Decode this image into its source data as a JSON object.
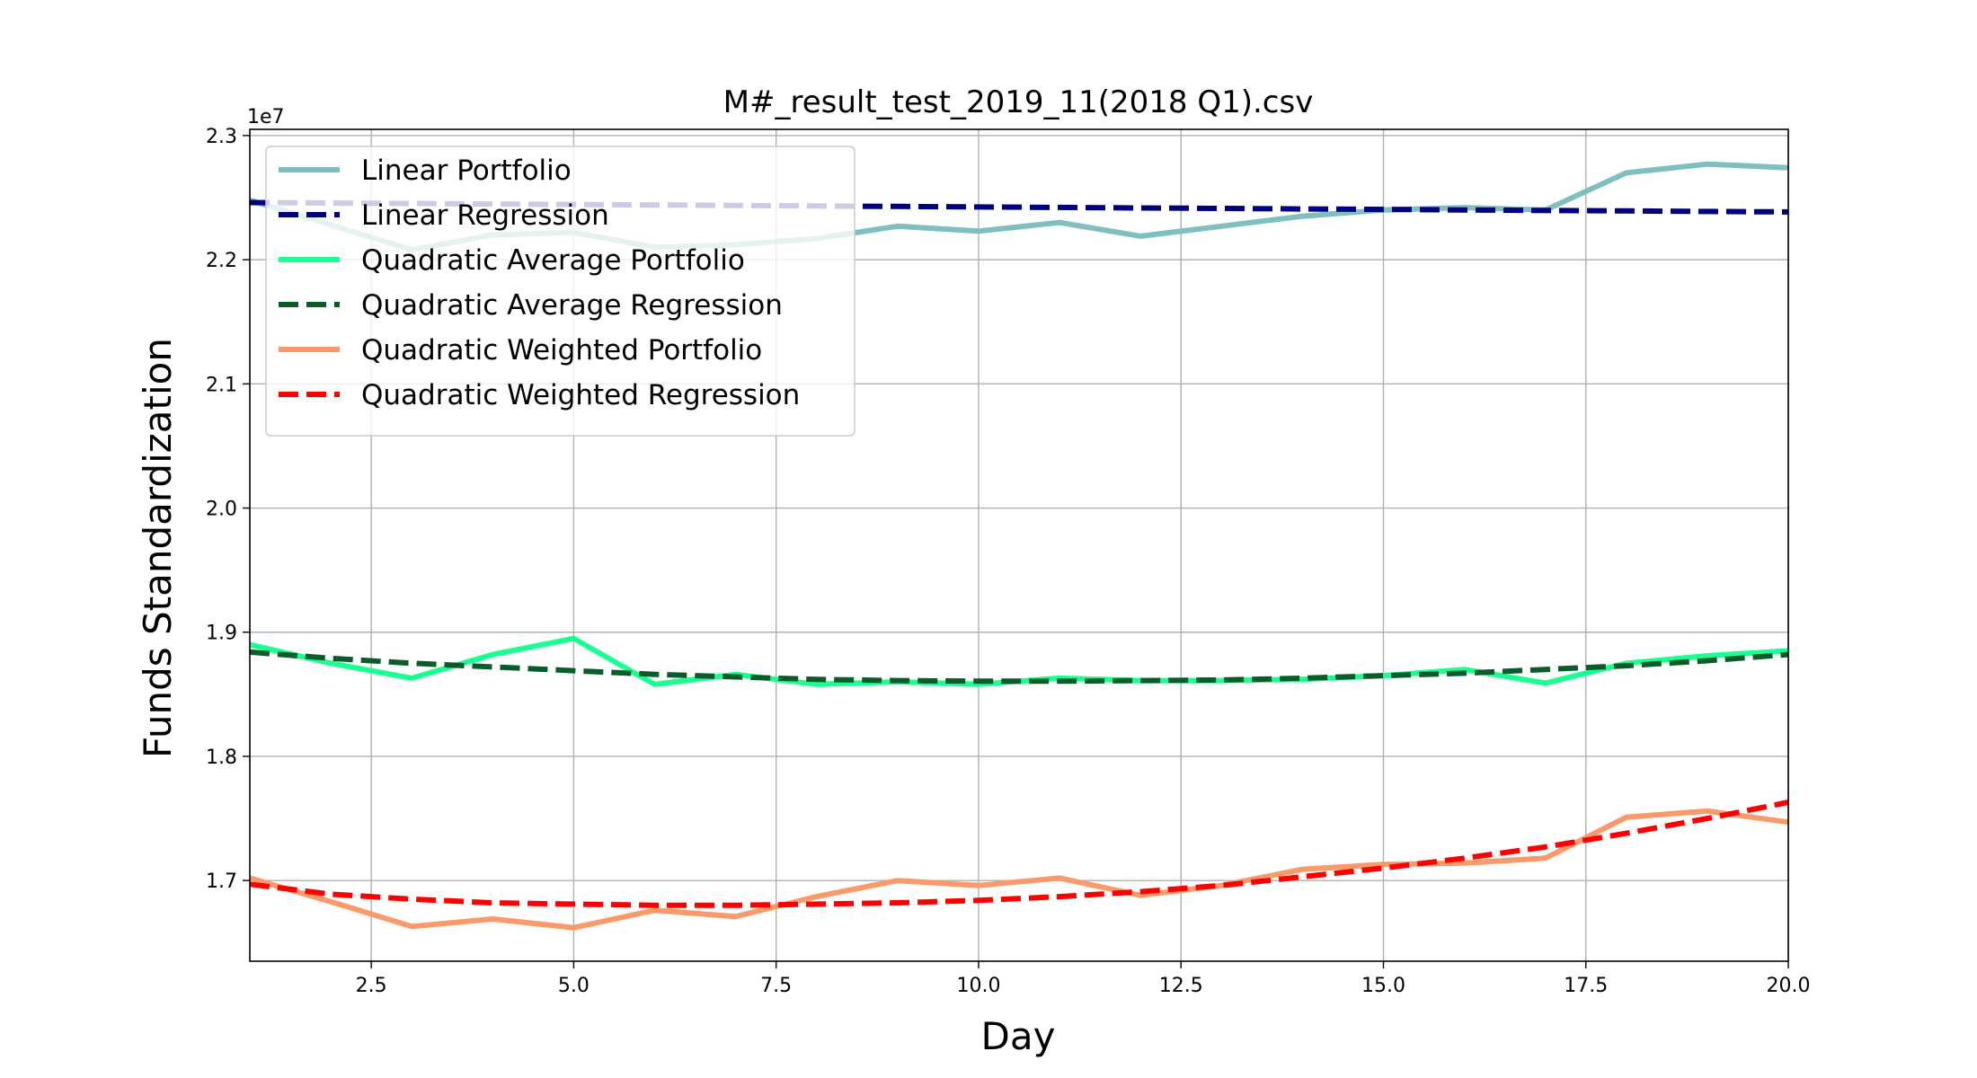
{
  "chart_data": {
    "type": "line",
    "title": "M#_result_test_2019_11(2018 Q1).csv",
    "xlabel": "Day",
    "ylabel": "Funds Standardization",
    "y_offset_label": "1e7",
    "xlim": [
      1,
      20
    ],
    "ylim": [
      16.35,
      23.05
    ],
    "xticks": [
      2.5,
      5.0,
      7.5,
      10.0,
      12.5,
      15.0,
      17.5,
      20.0
    ],
    "xtick_labels": [
      "2.5",
      "5.0",
      "7.5",
      "10.0",
      "12.5",
      "15.0",
      "17.5",
      "20.0"
    ],
    "yticks": [
      17,
      18,
      19,
      20,
      21,
      22,
      23
    ],
    "ytick_labels": [
      "1.7",
      "1.8",
      "1.9",
      "2.0",
      "2.1",
      "2.2",
      "2.3"
    ],
    "grid": true,
    "legend_position": "top-left",
    "x": [
      1,
      2,
      3,
      4,
      5,
      6,
      7,
      8,
      9,
      10,
      11,
      12,
      13,
      14,
      15,
      16,
      17,
      18,
      19,
      20
    ],
    "series": [
      {
        "name": "Linear Portfolio",
        "color": "#7fbfbf",
        "style": "solid",
        "values": [
          22.48,
          22.28,
          22.08,
          22.2,
          22.22,
          22.1,
          22.12,
          22.17,
          22.27,
          22.23,
          22.3,
          22.19,
          22.27,
          22.35,
          22.4,
          22.42,
          22.4,
          22.7,
          22.77,
          22.74
        ]
      },
      {
        "name": "Linear Regression",
        "color": "#000080",
        "style": "dashed",
        "values": [
          22.46,
          22.457,
          22.453,
          22.449,
          22.445,
          22.441,
          22.437,
          22.433,
          22.429,
          22.425,
          22.421,
          22.417,
          22.413,
          22.409,
          22.405,
          22.401,
          22.397,
          22.393,
          22.389,
          22.385
        ]
      },
      {
        "name": "Quadratic Average Portfolio",
        "color": "#1aff92",
        "style": "solid",
        "values": [
          18.9,
          18.75,
          18.63,
          18.82,
          18.95,
          18.58,
          18.66,
          18.58,
          18.6,
          18.58,
          18.63,
          18.61,
          18.61,
          18.62,
          18.65,
          18.7,
          18.59,
          18.75,
          18.81,
          18.85
        ]
      },
      {
        "name": "Quadratic Average Regression",
        "color": "#0a5c2b",
        "style": "dashed",
        "values": [
          18.84,
          18.79,
          18.75,
          18.72,
          18.69,
          18.66,
          18.64,
          18.62,
          18.61,
          18.605,
          18.605,
          18.61,
          18.615,
          18.63,
          18.65,
          18.67,
          18.7,
          18.73,
          18.77,
          18.82
        ]
      },
      {
        "name": "Quadratic Weighted Portfolio",
        "color": "#fa9a6a",
        "style": "solid",
        "values": [
          17.02,
          16.83,
          16.63,
          16.69,
          16.62,
          16.76,
          16.71,
          16.87,
          17.0,
          16.96,
          17.02,
          16.88,
          16.96,
          17.09,
          17.13,
          17.14,
          17.18,
          17.51,
          17.56,
          17.47
        ]
      },
      {
        "name": "Quadratic Weighted Regression",
        "color": "#ff0000",
        "style": "dashed",
        "values": [
          16.97,
          16.89,
          16.85,
          16.82,
          16.81,
          16.8,
          16.8,
          16.81,
          16.82,
          16.84,
          16.87,
          16.91,
          16.96,
          17.03,
          17.1,
          17.18,
          17.27,
          17.38,
          17.5,
          17.63
        ]
      }
    ]
  }
}
